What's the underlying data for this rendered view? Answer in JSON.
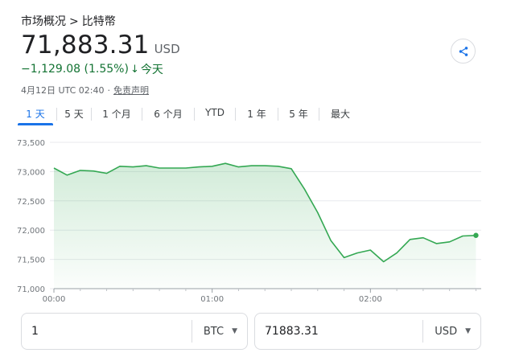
{
  "breadcrumb": {
    "parent": "市场概况",
    "separator": ">",
    "current": "比特幣"
  },
  "quote": {
    "price": "71,883.31",
    "currency": "USD",
    "change": "−1,129.08 (1.55%)",
    "change_arrow": "↓",
    "period": "今天",
    "timestamp": "4月12日 UTC 02:40",
    "meta_separator": "·",
    "disclaimer": "免责声明"
  },
  "share_icon": "share-icon",
  "tabs": [
    {
      "label": "1 天",
      "active": true
    },
    {
      "label": "5 天",
      "active": false
    },
    {
      "label": "1 个月",
      "active": false
    },
    {
      "label": "6 个月",
      "active": false
    },
    {
      "label": "YTD",
      "active": false
    },
    {
      "label": "1 年",
      "active": false
    },
    {
      "label": "5 年",
      "active": false
    },
    {
      "label": "最大",
      "active": false
    }
  ],
  "colors": {
    "accent": "#1a73e8",
    "line": "#34a853",
    "negative_text": "#137333"
  },
  "chart_data": {
    "type": "area",
    "ylim": [
      71000,
      73500
    ],
    "y_ticks": [
      "73,500",
      "73,000",
      "72,500",
      "72,000",
      "71,500",
      "71,000"
    ],
    "y_tick_values": [
      73500,
      73000,
      72500,
      72000,
      71500,
      71000
    ],
    "x_ticks": [
      "00:00",
      "01:00",
      "02:00"
    ],
    "x_tick_minutes": [
      0,
      60,
      120
    ],
    "x_range_minutes": [
      0,
      162
    ],
    "grid": true,
    "series": [
      {
        "x": [
          0,
          5,
          10,
          15,
          20,
          25,
          30,
          35,
          40,
          45,
          50,
          55,
          60,
          65,
          70,
          75,
          80,
          85,
          90,
          95,
          100,
          105,
          110,
          115,
          120,
          125,
          130,
          135,
          140,
          145,
          150,
          155,
          160
        ],
        "y": [
          73060,
          72940,
          73020,
          73010,
          72970,
          73090,
          73080,
          73100,
          73060,
          73060,
          73060,
          73080,
          73090,
          73140,
          73080,
          73100,
          73100,
          73090,
          73050,
          72700,
          72300,
          71820,
          71530,
          71610,
          71660,
          71460,
          71610,
          71840,
          71870,
          71770,
          71800,
          71900,
          71910
        ]
      }
    ]
  },
  "converter": {
    "from_value": "1",
    "from_unit": "BTC",
    "to_value": "71883.31",
    "to_unit": "USD",
    "caret": "▼"
  }
}
